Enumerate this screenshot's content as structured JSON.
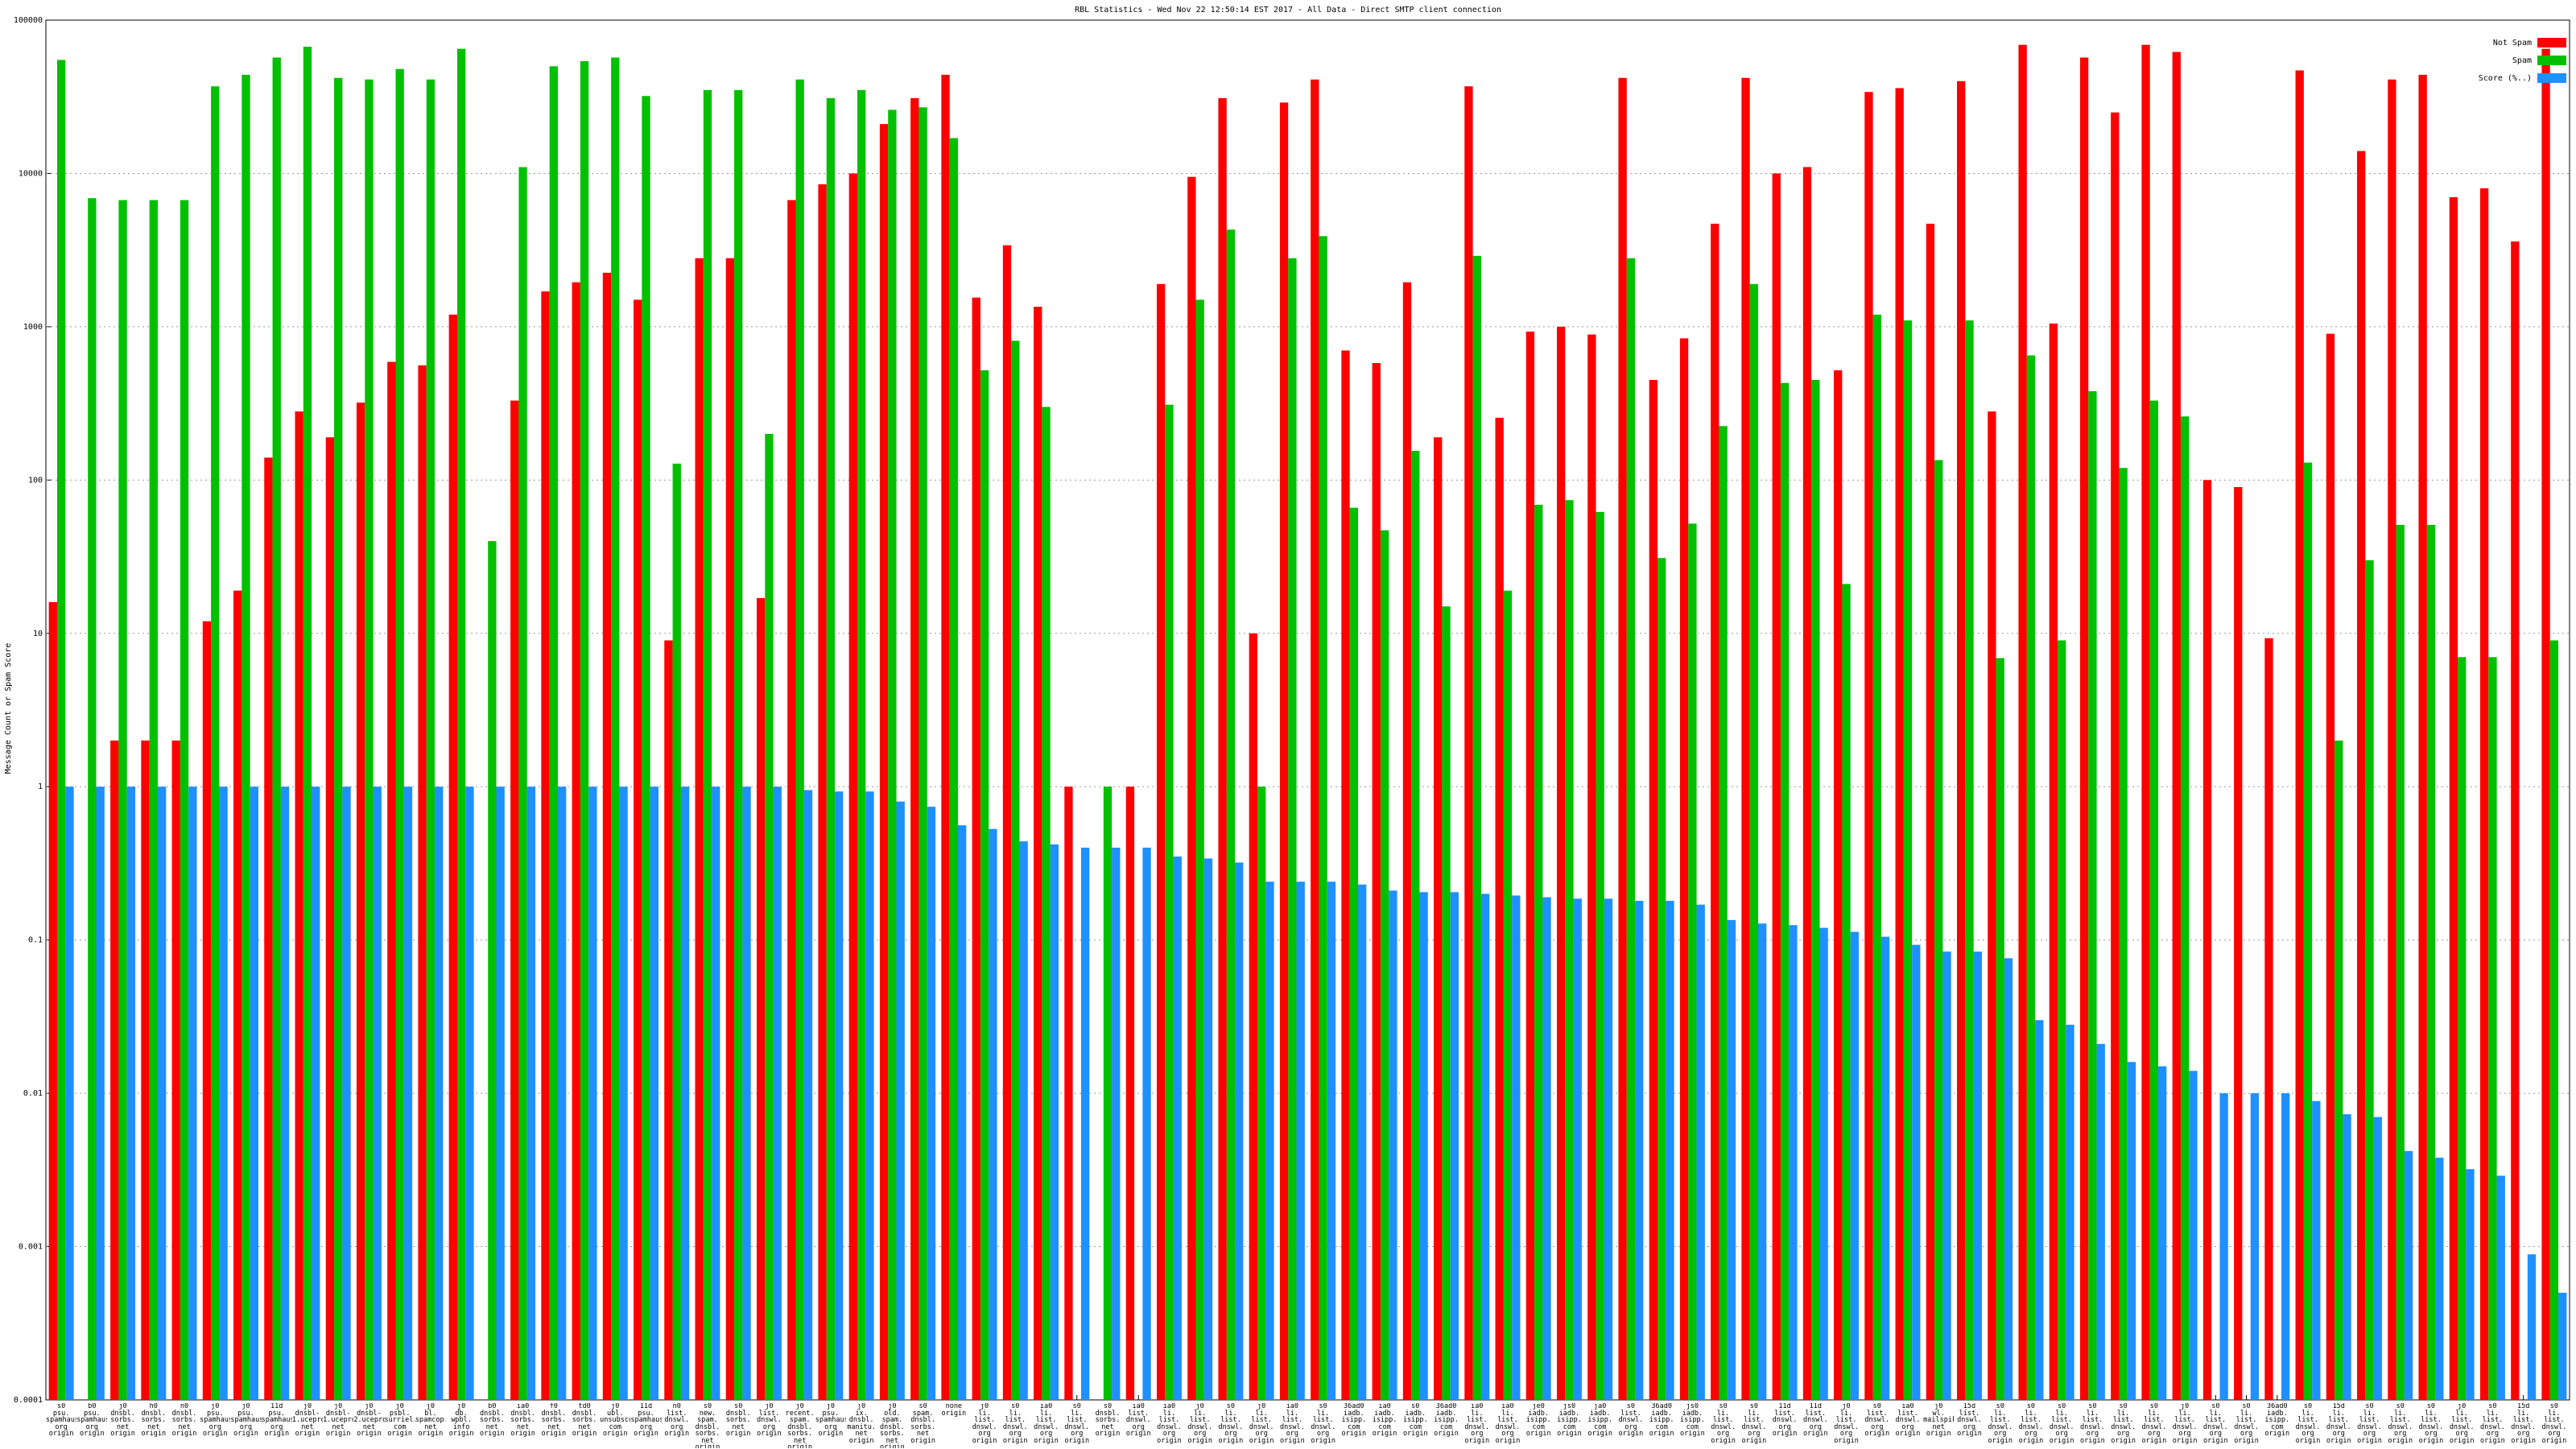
{
  "chart_data": {
    "type": "bar",
    "title": "RBL Statistics - Wed Nov 22 12:50:14 EST 2017 - All Data - Direct SMTP client connection",
    "y_label": "Message Count or Spam Score",
    "log_scale": true,
    "grid": true,
    "legend": "top-right",
    "ylim": [
      0.0001,
      100000
    ],
    "yticks": [
      0.0001,
      0.001,
      0.01,
      0.1,
      1,
      10,
      100,
      1000,
      10000,
      100000
    ],
    "categories": [
      "s0 psu. spamhaus org origin",
      "b0 psu. spamhaus org origin",
      "j0 dnsbl. sorbs. net origin",
      "h0 dnsbl. sorbs. net origin",
      "n0 dnsbl. sorbs. net origin",
      "j0 psu. spamhaus org origin",
      "j0 psu. spamhaus org origin",
      "11d psu. spamhaus org origin",
      "j0 dnsbl-1.uceprotect. net origin",
      "j0 dnsbl-1.uceprotect. net origin",
      "j0 dnsbl-2.uceprotect. net origin",
      "j0 psbl. surriel. com origin",
      "j0 bl. spamcop. net origin",
      "j0 db. wpbl. info origin",
      "b0 dnsbl. sorbs. net origin",
      "ia0 dnsbl. sorbs. net origin",
      "f0 dnsbl. sorbs. net origin",
      "td0 dnsbl. sorbs. net origin",
      "j0 ubl. unsubscore. com origin",
      "11d psu. spamhaus org origin",
      "n0 list. dnswl. org origin",
      "s0 new. spam. dnsbl. sorbs. net origin",
      "s0 dnsbl. sorbs. net origin",
      "j0 list. dnswl. org origin",
      "j0 recent. spam. dnsbl. sorbs. net origin",
      "j0 psu. spamhaus org origin",
      "j0 ix. dnsbl. manitu. net origin",
      "j0 old. spam. dnsbl. sorbs. net origin",
      "s0 spam. dnsbl. sorbs. net origin",
      "none origin",
      "j0 li. list. dnswl. org origin",
      "s0 li. list. dnswl. org origin",
      "ia0 li. list. dnswl. org origin",
      "s0 li. list. dnswl. org origin",
      "s0 dnsbl. sorbs. net origin",
      "ia0 list. dnswl. org origin",
      "ia0 li. list. dnswl. org origin",
      "j0 li. list. dnswl. org origin",
      "s0 li. list. dnswl. org origin",
      "j0 li. list. dnswl. org origin",
      "ia0 li. list. dnswl. org origin",
      "s0 li. list. dnswl. org origin",
      "36ad0 iadb. isipp. com origin",
      "ia0 iadb. isipp. com origin",
      "s0 iadb. isipp. com origin",
      "36ad0 iadb. isipp. com origin",
      "ia0 li. list. dnswl. org origin",
      "ia0 li. list. dnswl. org origin",
      "je0 iadb. isipp. com origin",
      "js0 iadb. isipp. com origin",
      "ja0 iadb. isipp. com origin",
      "s0 list. dnswl. org origin",
      "36ad0 iadb. isipp. com origin",
      "js0 iadb. isipp. com origin",
      "s0 li. list. dnswl. org origin",
      "s0 li. list. dnswl. org origin",
      "11d list. dnswl. org origin",
      "11d list. dnswl. org origin",
      "j0 li. list. dnswl. org origin",
      "s0 list. dnswl. org origin",
      "ia0 list. dnswl. org origin",
      "j0 wl. mailspike. net origin",
      "15d list. dnswl. org origin",
      "s0 li. list. dnswl. org origin",
      "s0 li. list. dnswl. org origin",
      "s0 li. list. dnswl. org origin",
      "s0 li. list. dnswl. org origin",
      "s0 li. list. dnswl. org origin",
      "s0 li. list. dnswl. org origin",
      "j0 li. list. dnswl. org origin",
      "s0 li. list. dnswl. org origin",
      "s0 li. list. dnswl. org origin",
      "36ad0 iadb. isipp. com origin",
      "s0 li. list. dnswl. org origin",
      "15d li. list. dnswl. org origin",
      "s0 li. list. dnswl. org origin",
      "s0 li. list. dnswl. org origin",
      "s0 li. list. dnswl. org origin",
      "j0 li. list. dnswl. org origin",
      "s0 li. list. dnswl. org origin",
      "15d li. list. dnswl. org origin",
      "s0 li. list. dnswl. org origin"
    ],
    "series": [
      {
        "name": "Not Spam",
        "color": "#ff0000",
        "values": [
          16,
          null,
          2,
          2,
          2,
          12,
          19,
          140,
          280,
          190,
          320,
          590,
          560,
          1200,
          null,
          330,
          1700,
          1950,
          2250,
          1500,
          9,
          2800,
          2800,
          17,
          6700,
          8500,
          10000,
          21000,
          31000,
          44000,
          1550,
          3400,
          1350,
          1,
          null,
          1,
          1900,
          9500,
          31000,
          10,
          29000,
          41000,
          700,
          580,
          1950,
          190,
          37000,
          255,
          930,
          1000,
          890,
          42000,
          450,
          840,
          4700,
          42000,
          10000,
          11000,
          520,
          34000,
          36000,
          4700,
          40000,
          280,
          69000,
          1050,
          57000,
          25000,
          69000,
          62000,
          100,
          90,
          9.3,
          47000,
          900,
          14000,
          41000,
          44000,
          7000,
          8000,
          3600,
          65000
        ]
      },
      {
        "name": "Spam",
        "color": "#00c000",
        "values": [
          55000,
          6900,
          6700,
          6700,
          6700,
          37000,
          44000,
          57000,
          67000,
          42000,
          41000,
          48000,
          41000,
          65000,
          40,
          11000,
          50000,
          54000,
          57000,
          32000,
          128,
          35000,
          35000,
          200,
          41000,
          31000,
          35000,
          26000,
          27000,
          17000,
          520,
          810,
          300,
          null,
          1,
          null,
          310,
          1500,
          4300,
          1,
          2800,
          3900,
          66,
          47,
          155,
          15,
          2900,
          19,
          69,
          74,
          62,
          2800,
          31,
          52,
          225,
          1900,
          430,
          450,
          21,
          1200,
          1100,
          135,
          1100,
          6.9,
          650,
          9,
          380,
          120,
          330,
          260,
          null,
          null,
          null,
          130,
          2,
          30,
          51,
          51,
          7,
          7,
          null,
          9
        ]
      },
      {
        "name": "Score (%..)",
        "color": "#1e90ff",
        "values": [
          1,
          1,
          1,
          1,
          1,
          1,
          1,
          1,
          1,
          1,
          1,
          1,
          1,
          1,
          1,
          1,
          1,
          1,
          1,
          1,
          1,
          1,
          1,
          1,
          0.95,
          0.93,
          0.93,
          0.8,
          0.74,
          0.56,
          0.53,
          0.44,
          0.42,
          0.4,
          0.4,
          0.4,
          0.35,
          0.34,
          0.32,
          0.24,
          0.24,
          0.24,
          0.23,
          0.21,
          0.205,
          0.205,
          0.2,
          0.195,
          0.19,
          0.186,
          0.186,
          0.18,
          0.18,
          0.17,
          0.135,
          0.128,
          0.125,
          0.12,
          0.113,
          0.105,
          0.093,
          0.084,
          0.084,
          0.076,
          0.03,
          0.028,
          0.021,
          0.016,
          0.015,
          0.014,
          0.01,
          0.01,
          0.01,
          0.0089,
          0.0073,
          0.007,
          0.0042,
          0.0038,
          0.0032,
          0.0029,
          0.00089,
          0.0005
        ]
      }
    ]
  }
}
